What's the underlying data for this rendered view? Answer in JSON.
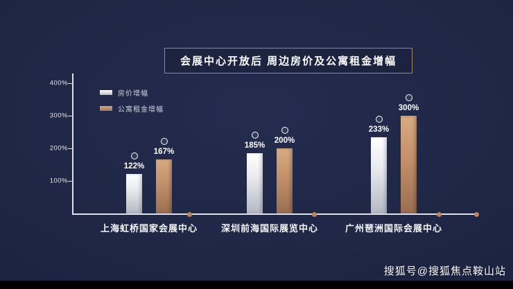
{
  "page": {
    "watermark": "搜狐号@搜狐焦点鞍山站",
    "background_color": "#1d2442",
    "accent_color": "#a8845e"
  },
  "chart_data": {
    "type": "bar",
    "title": "会展中心开放后  周边房价及公寓租金增幅",
    "categories": [
      "上海虹桥国家会展中心",
      "深圳前海国际展览中心",
      "广州琶洲国际会展中心"
    ],
    "series": [
      {
        "name": "房价增幅",
        "values": [
          122,
          185,
          233
        ],
        "color": "#e8eaee"
      },
      {
        "name": "公寓租金增幅",
        "values": [
          167,
          200,
          300
        ],
        "color": "#c2906a"
      }
    ],
    "value_suffix": "%",
    "ylim": [
      0,
      400
    ],
    "yticks": [
      100,
      200,
      300,
      400
    ],
    "ytick_labels": [
      "100%",
      "200%",
      "300%",
      "400%"
    ],
    "legend_position": "top-left",
    "grid": false,
    "axis_color": "#dfe1e6",
    "dot_color": "#b9855c"
  }
}
